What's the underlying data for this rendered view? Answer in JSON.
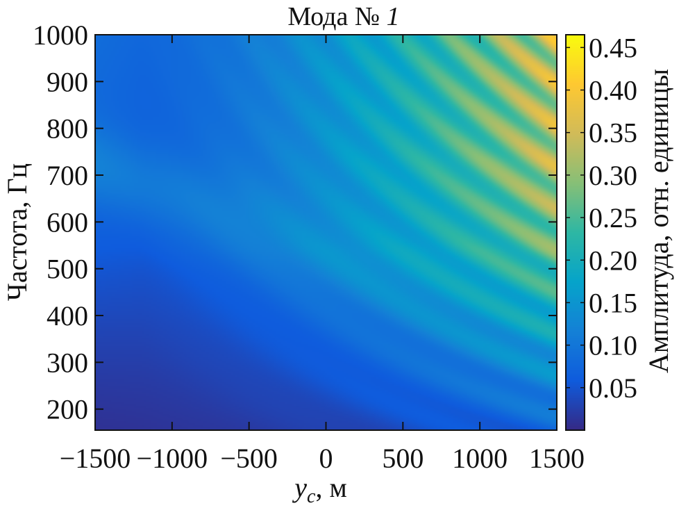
{
  "chart_data": {
    "type": "heatmap",
    "title": {
      "prefix": "Мода № ",
      "mode_number": "1"
    },
    "xlabel": {
      "var": "y",
      "sub": "c",
      "unit": ", м"
    },
    "ylabel": "Частота, Гц",
    "colorbar_label": "Амплитуда, отн. единицы",
    "xlim": [
      -1500,
      1500
    ],
    "ylim": [
      155,
      1000
    ],
    "x_ticks": [
      {
        "value": -1500,
        "label": "−1500"
      },
      {
        "value": -1000,
        "label": "−1000"
      },
      {
        "value": -500,
        "label": "−500"
      },
      {
        "value": 0,
        "label": "0"
      },
      {
        "value": 500,
        "label": "500"
      },
      {
        "value": 1000,
        "label": "1000"
      },
      {
        "value": 1500,
        "label": "1500"
      }
    ],
    "y_ticks": [
      {
        "value": 200,
        "label": "200"
      },
      {
        "value": 300,
        "label": "300"
      },
      {
        "value": 400,
        "label": "400"
      },
      {
        "value": 500,
        "label": "500"
      },
      {
        "value": 600,
        "label": "600"
      },
      {
        "value": 700,
        "label": "700"
      },
      {
        "value": 800,
        "label": "800"
      },
      {
        "value": 900,
        "label": "900"
      },
      {
        "value": 1000,
        "label": "1000"
      }
    ],
    "clim": [
      0.0,
      0.465
    ],
    "colorbar_ticks": [
      {
        "value": 0.05,
        "label": "0.05"
      },
      {
        "value": 0.1,
        "label": "0.10"
      },
      {
        "value": 0.15,
        "label": "0.15"
      },
      {
        "value": 0.2,
        "label": "0.20"
      },
      {
        "value": 0.25,
        "label": "0.25"
      },
      {
        "value": 0.3,
        "label": "0.30"
      },
      {
        "value": 0.35,
        "label": "0.35"
      },
      {
        "value": 0.4,
        "label": "0.40"
      },
      {
        "value": 0.45,
        "label": "0.45"
      }
    ],
    "colormap": "parula",
    "colormap_stops": [
      "#352a87",
      "#0f5cdd",
      "#1481d6",
      "#06a4ca",
      "#2eb7a4",
      "#87bf77",
      "#d1bb59",
      "#fec832",
      "#f9fb0e"
    ]
  }
}
